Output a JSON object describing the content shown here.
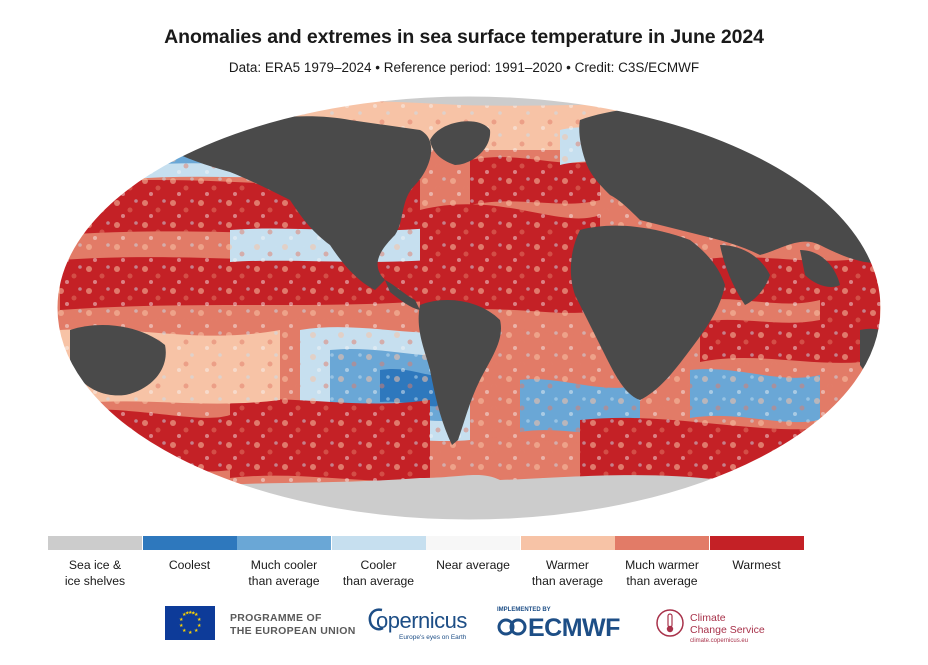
{
  "header": {
    "title": "Anomalies and extremes in sea surface temperature in June 2024",
    "subtitle": "Data: ERA5 1979–2024 • Reference period: 1991–2020 • Credit: C3S/ECMWF"
  },
  "colors": {
    "land": "#4a4a4a",
    "sea_ice": "#cccccc",
    "coolest": "#2e78bd",
    "much_cooler": "#6aa7d6",
    "cooler": "#c6dfef",
    "near_average": "#f7f7f7",
    "warmer": "#f7c3a6",
    "much_warmer": "#e27b67",
    "warmest": "#c42126"
  },
  "legend": {
    "items": [
      {
        "label": "Sea ice &\nice shelves",
        "color": "#cccccc"
      },
      {
        "label": "Coolest",
        "color": "#2e78bd"
      },
      {
        "label": "Much cooler\nthan average",
        "color": "#6aa7d6"
      },
      {
        "label": "Cooler\nthan average",
        "color": "#c6dfef"
      },
      {
        "label": "Near average",
        "color": "#f7f7f7"
      },
      {
        "label": "Warmer\nthan average",
        "color": "#f7c3a6"
      },
      {
        "label": "Much warmer\nthan average",
        "color": "#e27b67"
      },
      {
        "label": "Warmest",
        "color": "#c42126"
      }
    ]
  },
  "logos": {
    "eu_text": "PROGRAMME OF\nTHE EUROPEAN UNION",
    "copernicus_name": "opernicus",
    "copernicus_tagline": "Europe's eyes on Earth",
    "ecmwf_implemented": "IMPLEMENTED BY",
    "ecmwf_name": "ECMWF",
    "c3s_name": "Climate\nChange Service",
    "c3s_url": "climate.copernicus.eu"
  },
  "icons": [
    "eu-flag-icon",
    "copernicus-logo-icon",
    "ecmwf-logo-icon",
    "c3s-thermometer-icon"
  ]
}
